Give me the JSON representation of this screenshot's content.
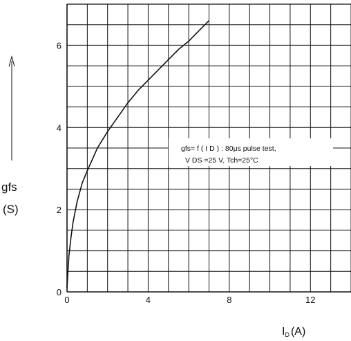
{
  "chart_data": {
    "type": "line",
    "xlabel": "I_D (A)",
    "xlabel_main": "I",
    "xlabel_sub": "D",
    "xlabel_unit": "(A)",
    "ylabel": "gfs",
    "ylabel_unit": "(S)",
    "xlim": [
      0,
      14
    ],
    "ylim": [
      0,
      7
    ],
    "x_ticks": [
      0,
      4,
      8,
      12
    ],
    "y_ticks": [
      0,
      2,
      4,
      6
    ],
    "x_grid_step": 1,
    "y_grid_step": 0.5,
    "grid": true,
    "annotation_line1": "gfs= f ( I D ) : 80μs pulse test,",
    "annotation_line2": "V DS =25 V,  Tch=25°C",
    "series": [
      {
        "x": [
          0,
          0.05,
          0.1,
          0.2,
          0.3,
          0.5,
          0.75,
          1.0,
          1.5,
          2.0,
          2.5,
          3.0,
          3.5,
          4.0,
          4.5,
          5.0,
          5.5,
          6.0,
          6.5,
          7.0
        ],
        "y": [
          0.1,
          0.55,
          0.9,
          1.35,
          1.7,
          2.2,
          2.65,
          2.95,
          3.5,
          3.9,
          4.25,
          4.6,
          4.9,
          5.15,
          5.4,
          5.65,
          5.9,
          6.1,
          6.35,
          6.6
        ]
      }
    ]
  }
}
